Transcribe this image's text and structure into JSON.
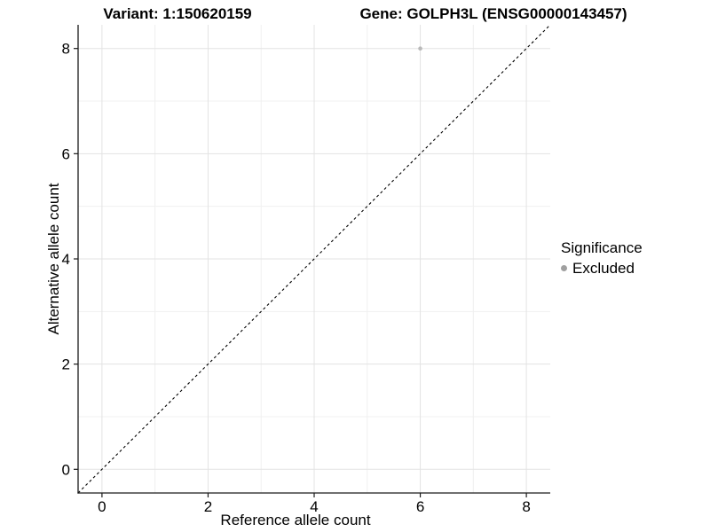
{
  "titles": {
    "variant": "Variant: 1:150620159",
    "gene": "Gene: GOLPH3L (ENSG00000143457)"
  },
  "chart_data": {
    "type": "scatter",
    "title": "Variant: 1:150620159    Gene: GOLPH3L (ENSG00000143457)",
    "xlabel": "Reference allele count",
    "ylabel": "Alternative allele count",
    "xlim": [
      -0.45,
      8.45
    ],
    "ylim": [
      -0.45,
      8.45
    ],
    "x_ticks": [
      0,
      2,
      4,
      6,
      8
    ],
    "x_minor_ticks": [
      1,
      3,
      5,
      7
    ],
    "y_ticks": [
      0,
      2,
      4,
      6,
      8
    ],
    "y_minor_ticks": [
      1,
      3,
      5,
      7
    ],
    "grid": "on",
    "series": [
      {
        "name": "Excluded",
        "color": "#b9b9b9",
        "points": [
          {
            "x": 6,
            "y": 8
          }
        ]
      }
    ],
    "reference_line": {
      "equation": "y = x",
      "style": "dashed",
      "color": "#000000",
      "x1": -0.45,
      "y1": -0.45,
      "x2": 8.45,
      "y2": 8.45
    },
    "legend": {
      "title": "Significance",
      "position": "right",
      "items": [
        {
          "label": "Excluded",
          "color": "#a0a0a0"
        }
      ]
    }
  },
  "colors": {
    "background": "#ffffff",
    "grid_major": "#e3e3e3",
    "grid_minor": "#f0f0f0",
    "axis_line": "#1a1a1a",
    "tick": "#1a1a1a",
    "text": "#000000"
  }
}
